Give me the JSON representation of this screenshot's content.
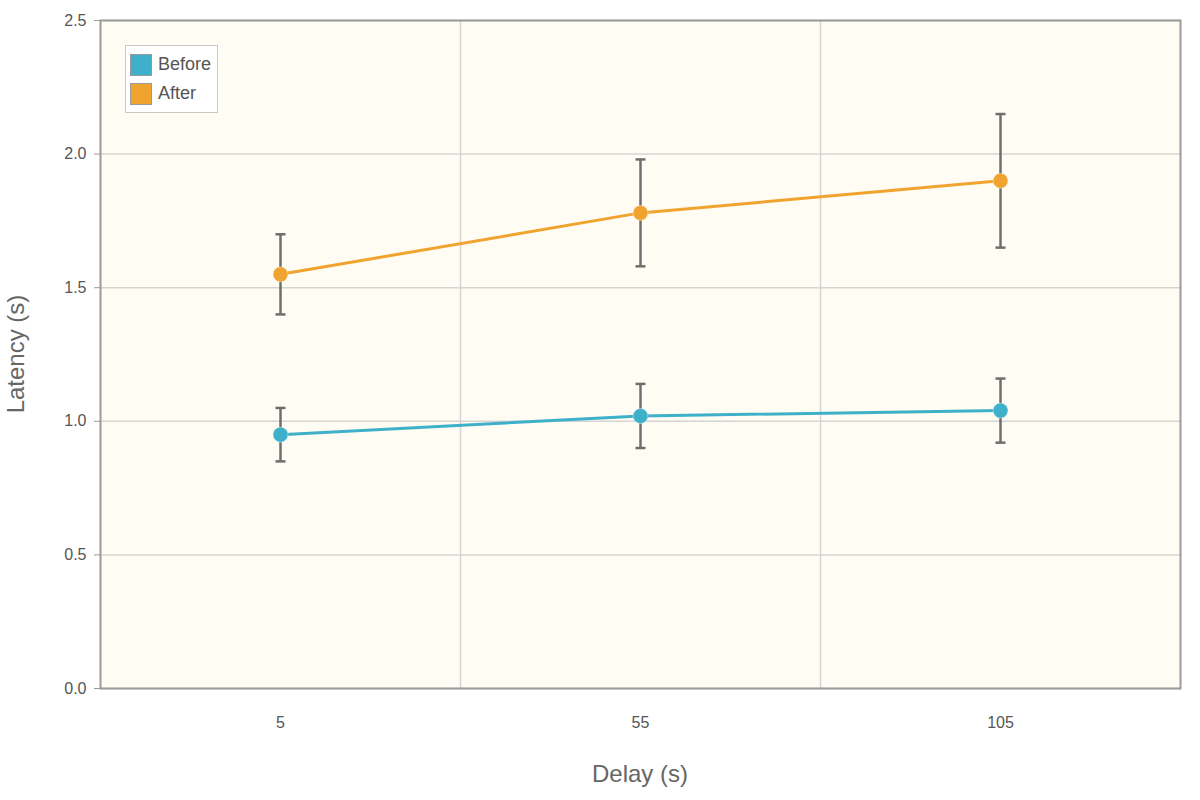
{
  "chart_data": {
    "type": "line",
    "x_label": "Delay (s)",
    "y_label": "Latency (s)",
    "x": [
      5,
      55,
      105
    ],
    "series": [
      {
        "name": "Before",
        "color": "#3fb0c9",
        "values": [
          0.95,
          1.02,
          1.04
        ],
        "errors": [
          0.1,
          0.12,
          0.12
        ]
      },
      {
        "name": "After",
        "color": "#f0a32e",
        "values": [
          1.55,
          1.78,
          1.9
        ],
        "errors": [
          0.15,
          0.2,
          0.25
        ]
      }
    ],
    "xlim": [
      -20,
      130
    ],
    "xticks": [
      5,
      55,
      105
    ],
    "ylim": [
      0,
      2.5
    ],
    "yticks": [
      {
        "value": 0,
        "label": "0.0"
      },
      0.5,
      {
        "value": 1,
        "label": "1.0"
      },
      1.5,
      {
        "value": 2,
        "label": "2.0"
      },
      2.5
    ],
    "grid": true,
    "legend": "top-left",
    "marker": "circle"
  }
}
